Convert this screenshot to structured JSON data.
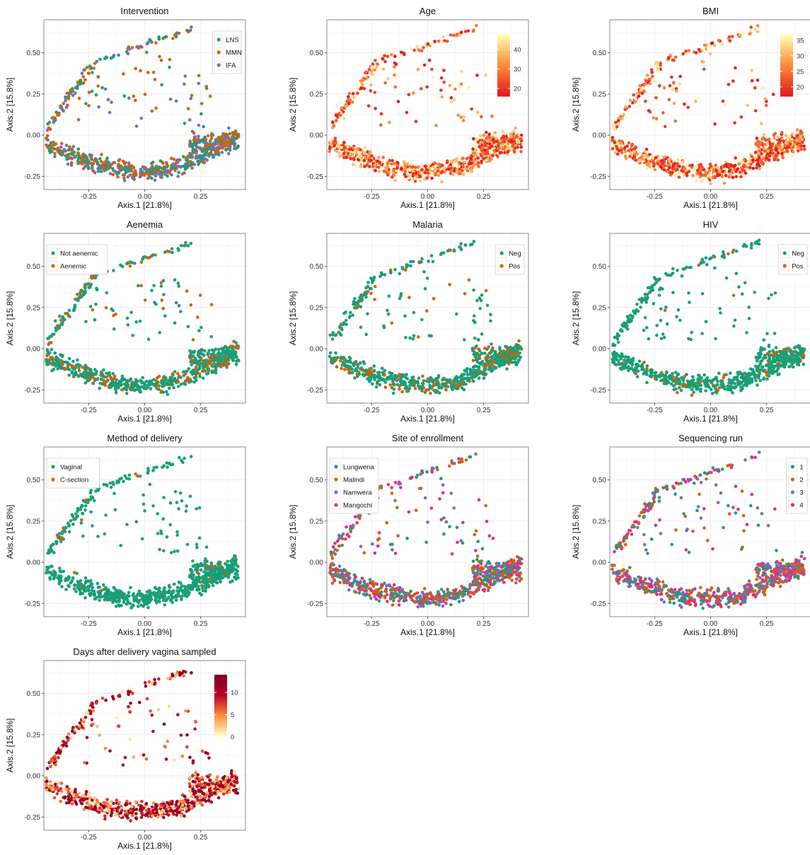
{
  "colors": {
    "teal": "#1b9e77",
    "orange": "#d95f02",
    "purple": "#7570b3",
    "pink": "#e7298a",
    "grid": "#ebebeb",
    "frame": "#7f7f7f"
  },
  "chart_data": [
    {
      "type": "scatter",
      "title": "Intervention",
      "xlabel": "Axis.1   [21.8%]",
      "ylabel": "Axis.2   [15.8%]",
      "xticks": [
        "-0.25",
        "0.00",
        "0.25"
      ],
      "yticks": [
        "-0.25",
        "0.00",
        "0.25",
        "0.50"
      ],
      "xlim": [
        -0.45,
        0.45
      ],
      "ylim": [
        -0.33,
        0.7
      ],
      "color_mode": "categorical",
      "legend": [
        {
          "label": "LNS",
          "color": "#1b9e77"
        },
        {
          "label": "MMN",
          "color": "#d95f02"
        },
        {
          "label": "IFA",
          "color": "#7570b3"
        }
      ],
      "legend_position": "top-right",
      "seed": 11
    },
    {
      "type": "scatter",
      "title": "Age",
      "xlabel": "Axis.1   [21.8%]",
      "ylabel": "Axis.2   [15.8%]",
      "xticks": [
        "-0.25",
        "0.00",
        "0.25"
      ],
      "yticks": [
        "-0.25",
        "0.00",
        "0.25",
        "0.50"
      ],
      "xlim": [
        -0.45,
        0.45
      ],
      "ylim": [
        -0.33,
        0.7
      ],
      "color_mode": "continuous",
      "colorbar": {
        "ticks": [
          "40",
          "30",
          "20"
        ],
        "min": 16,
        "max": 48,
        "tick_values": [
          40,
          30,
          20
        ],
        "palette": "yellow-red"
      },
      "legend_position": "top-right",
      "seed": 23
    },
    {
      "type": "scatter",
      "title": "BMI",
      "xlabel": "Axis.1   [21.8%]",
      "ylabel": "Axis.2   [15.8%]",
      "xticks": [
        "-0.25",
        "0.00",
        "0.25"
      ],
      "yticks": [
        "-0.25",
        "0.00",
        "0.25",
        "0.50"
      ],
      "xlim": [
        -0.45,
        0.45
      ],
      "ylim": [
        -0.33,
        0.7
      ],
      "color_mode": "continuous",
      "colorbar": {
        "ticks": [
          "35",
          "30",
          "25",
          "20"
        ],
        "min": 17,
        "max": 37,
        "tick_values": [
          35,
          30,
          25,
          20
        ],
        "palette": "yellow-red"
      },
      "legend_position": "top-right",
      "seed": 37
    },
    {
      "type": "scatter",
      "title": "Aenemia",
      "xlabel": "Axis.1   [21.8%]",
      "ylabel": "Axis.2   [15.8%]",
      "xticks": [
        "-0.25",
        "0.00",
        "0.25"
      ],
      "yticks": [
        "-0.25",
        "0.00",
        "0.25",
        "0.50"
      ],
      "xlim": [
        -0.45,
        0.45
      ],
      "ylim": [
        -0.33,
        0.7
      ],
      "color_mode": "categorical",
      "weights": [
        0.8,
        0.2
      ],
      "legend": [
        {
          "label": "Not aenemic",
          "color": "#1b9e77"
        },
        {
          "label": "Aenemic",
          "color": "#d95f02"
        }
      ],
      "legend_position": "top-left",
      "seed": 41
    },
    {
      "type": "scatter",
      "title": "Malaria",
      "xlabel": "Axis.1   [21.8%]",
      "ylabel": "Axis.2   [15.8%]",
      "xticks": [
        "-0.25",
        "0.00",
        "0.25"
      ],
      "yticks": [
        "-0.25",
        "0.00",
        "0.25",
        "0.50"
      ],
      "xlim": [
        -0.45,
        0.45
      ],
      "ylim": [
        -0.33,
        0.7
      ],
      "color_mode": "categorical",
      "weights": [
        0.82,
        0.18
      ],
      "legend": [
        {
          "label": "Neg",
          "color": "#1b9e77"
        },
        {
          "label": "Pos",
          "color": "#d95f02"
        }
      ],
      "legend_position": "top-right",
      "seed": 53
    },
    {
      "type": "scatter",
      "title": "HIV",
      "xlabel": "Axis.1   [21.8%]",
      "ylabel": "Axis.2   [15.8%]",
      "xticks": [
        "-0.25",
        "0.00",
        "0.25"
      ],
      "yticks": [
        "-0.25",
        "0.00",
        "0.25",
        "0.50"
      ],
      "xlim": [
        -0.45,
        0.45
      ],
      "ylim": [
        -0.33,
        0.7
      ],
      "color_mode": "categorical",
      "weights": [
        0.93,
        0.07
      ],
      "legend": [
        {
          "label": "Neg",
          "color": "#1b9e77"
        },
        {
          "label": "Pos",
          "color": "#d95f02"
        }
      ],
      "legend_position": "top-right",
      "seed": 67
    },
    {
      "type": "scatter",
      "title": "Method of delivery",
      "xlabel": "Axis.1   [21.8%]",
      "ylabel": "Axis.2   [15.8%]",
      "xticks": [
        "-0.25",
        "0.00",
        "0.25"
      ],
      "yticks": [
        "-0.25",
        "0.00",
        "0.25",
        "0.50"
      ],
      "xlim": [
        -0.45,
        0.45
      ],
      "ylim": [
        -0.33,
        0.7
      ],
      "color_mode": "categorical",
      "weights": [
        0.96,
        0.04
      ],
      "legend": [
        {
          "label": "Vaginal",
          "color": "#1b9e77"
        },
        {
          "label": "C-section",
          "color": "#d95f02"
        }
      ],
      "legend_position": "top-left",
      "seed": 71
    },
    {
      "type": "scatter",
      "title": "Site of enrollment",
      "xlabel": "Axis.1   [21.8%]",
      "ylabel": "Axis.2   [15.8%]",
      "xticks": [
        "-0.25",
        "0.00",
        "0.25"
      ],
      "yticks": [
        "-0.25",
        "0.00",
        "0.25",
        "0.50"
      ],
      "xlim": [
        -0.45,
        0.45
      ],
      "ylim": [
        -0.33,
        0.7
      ],
      "color_mode": "categorical",
      "legend": [
        {
          "label": "Lungwena",
          "color": "#1b9e77"
        },
        {
          "label": "Malindi",
          "color": "#d95f02"
        },
        {
          "label": "Namwera",
          "color": "#7570b3"
        },
        {
          "label": "Mangochi",
          "color": "#e7298a"
        }
      ],
      "legend_position": "top-left",
      "seed": 83
    },
    {
      "type": "scatter",
      "title": "Sequencing run",
      "xlabel": "Axis.1   [21.8%]",
      "ylabel": "Axis.2   [15.8%]",
      "xticks": [
        "-0.25",
        "0.00",
        "0.25"
      ],
      "yticks": [
        "-0.25",
        "0.00",
        "0.25",
        "0.50"
      ],
      "xlim": [
        -0.45,
        0.45
      ],
      "ylim": [
        -0.33,
        0.7
      ],
      "color_mode": "categorical",
      "legend": [
        {
          "label": "1",
          "color": "#1b9e77"
        },
        {
          "label": "2",
          "color": "#d95f02"
        },
        {
          "label": "3",
          "color": "#7570b3"
        },
        {
          "label": "4",
          "color": "#e7298a"
        }
      ],
      "legend_position": "top-right",
      "seed": 97
    },
    {
      "type": "scatter",
      "title": "Days after delivery vagina sampled",
      "xlabel": "Axis.1   [21.8%]",
      "ylabel": "Axis.2   [15.8%]",
      "xticks": [
        "-0.25",
        "0.00",
        "0.25"
      ],
      "yticks": [
        "-0.25",
        "0.00",
        "0.25",
        "0.50"
      ],
      "xlim": [
        -0.45,
        0.45
      ],
      "ylim": [
        -0.33,
        0.7
      ],
      "color_mode": "continuous",
      "colorbar": {
        "ticks": [
          "10",
          "5",
          "0"
        ],
        "min": 0,
        "max": 14,
        "tick_values": [
          10,
          5,
          0
        ],
        "palette": "yellow-darkred"
      },
      "legend_position": "top-right",
      "seed": 109
    }
  ]
}
